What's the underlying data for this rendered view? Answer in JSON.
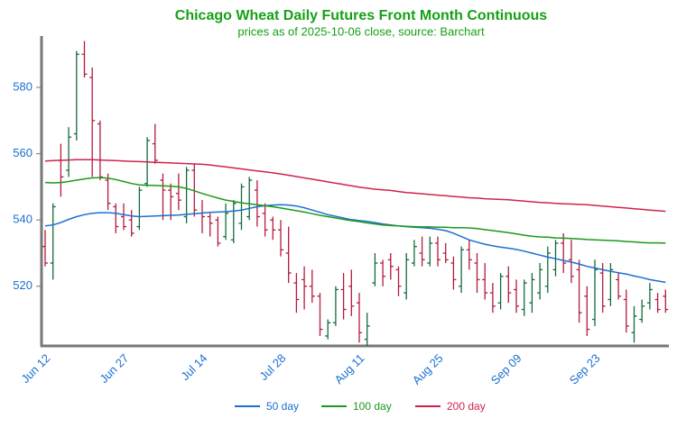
{
  "chart_data": {
    "type": "ohlc",
    "title": "Chicago Wheat Daily Futures Front Month Continuous",
    "subtitle": "prices as of 2025-10-06 close, source: Barchart",
    "categories": [
      "Jun 12",
      null,
      null,
      null,
      null,
      null,
      null,
      null,
      null,
      null,
      "Jun 27",
      null,
      null,
      null,
      null,
      null,
      null,
      null,
      null,
      null,
      "Jul 14",
      null,
      null,
      null,
      null,
      null,
      null,
      null,
      null,
      null,
      "Jul 28",
      null,
      null,
      null,
      null,
      null,
      null,
      null,
      null,
      null,
      "Aug 11",
      null,
      null,
      null,
      null,
      null,
      null,
      null,
      null,
      null,
      "Aug 25",
      null,
      null,
      null,
      null,
      null,
      null,
      null,
      null,
      null,
      "Sep 09",
      null,
      null,
      null,
      null,
      null,
      null,
      null,
      null,
      null,
      "Sep 23",
      null,
      null,
      null,
      null,
      null,
      null,
      null,
      null,
      null
    ],
    "open": [
      532,
      527,
      558,
      555,
      566,
      590,
      583,
      569,
      552,
      544,
      541,
      540,
      538,
      551,
      563,
      552,
      549,
      548,
      541,
      555,
      542,
      541,
      540,
      535,
      534,
      539,
      541,
      549,
      542,
      540,
      537,
      530,
      521,
      522,
      520,
      517,
      505,
      509,
      519,
      520,
      515,
      504,
      521,
      527,
      528,
      525,
      518,
      527,
      530,
      527,
      533,
      530,
      527,
      520,
      531,
      527,
      522,
      518,
      515,
      523,
      519,
      513,
      515,
      518,
      520,
      525,
      533,
      528,
      525,
      517,
      510,
      524,
      516,
      522,
      516,
      506,
      510,
      515,
      516,
      517
    ],
    "high": [
      537,
      545,
      563,
      568,
      591,
      594,
      586,
      570,
      554,
      545,
      545,
      543,
      550,
      565,
      569,
      554,
      551,
      554,
      556,
      557,
      546,
      542,
      541,
      545,
      546,
      551,
      553,
      552,
      545,
      541,
      540,
      538,
      524,
      526,
      525,
      518,
      510,
      520,
      524,
      525,
      518,
      512,
      530,
      528,
      530,
      526,
      530,
      534,
      535,
      535,
      535,
      533,
      529,
      532,
      534,
      530,
      527,
      521,
      524,
      526,
      522,
      522,
      524,
      527,
      532,
      534,
      536,
      534,
      528,
      520,
      528,
      527,
      527,
      524,
      519,
      514,
      516,
      521,
      518,
      519
    ],
    "low": [
      526,
      522,
      547,
      553,
      564,
      583,
      553,
      552,
      543,
      536,
      537,
      535,
      537,
      550,
      557,
      540,
      540,
      543,
      539,
      541,
      536,
      535,
      532,
      534,
      533,
      537,
      540,
      538,
      535,
      534,
      529,
      521,
      512,
      513,
      515,
      505,
      504,
      508,
      510,
      511,
      503,
      502,
      520,
      520,
      522,
      517,
      516,
      526,
      526,
      526,
      526,
      527,
      519,
      518,
      525,
      518,
      516,
      512,
      513,
      515,
      512,
      511,
      512,
      516,
      518,
      523,
      524,
      521,
      509,
      505,
      508,
      512,
      514,
      516,
      506,
      503,
      509,
      513,
      512,
      512
    ],
    "close": [
      527,
      544,
      553,
      565,
      590,
      584,
      570,
      553,
      545,
      538,
      538,
      536,
      549,
      564,
      558,
      549,
      547,
      546,
      555,
      543,
      541,
      539,
      533,
      542,
      545,
      550,
      552,
      541,
      537,
      537,
      531,
      524,
      516,
      520,
      517,
      507,
      509,
      519,
      513,
      514,
      506,
      508,
      527,
      523,
      526,
      520,
      528,
      532,
      528,
      533,
      528,
      528,
      522,
      531,
      528,
      522,
      518,
      514,
      523,
      518,
      514,
      521,
      522,
      525,
      530,
      533,
      527,
      523,
      512,
      507,
      525,
      514,
      525,
      517,
      508,
      511,
      514,
      519,
      513,
      513
    ],
    "up_color": "#146b3a",
    "down_color": "#b31b3c",
    "series": [
      {
        "name": "50 day",
        "color": "#1a6fd1",
        "values": [
          538.2,
          538.5,
          539.2,
          540.2,
          541.0,
          541.6,
          542.0,
          542.2,
          542.2,
          542.0,
          541.6,
          541.2,
          541.0,
          541.1,
          541.2,
          541.3,
          541.4,
          541.5,
          541.7,
          541.9,
          542.1,
          542.3,
          542.4,
          542.5,
          542.7,
          543.0,
          543.5,
          544.0,
          544.3,
          544.5,
          544.6,
          544.5,
          544.2,
          543.7,
          543.0,
          542.3,
          541.6,
          541.1,
          540.6,
          540.1,
          539.8,
          539.6,
          539.2,
          538.8,
          538.5,
          538.2,
          538.0,
          537.8,
          537.7,
          537.5,
          537.2,
          536.8,
          536.0,
          535.0,
          534.0,
          533.3,
          532.7,
          532.2,
          531.8,
          531.5,
          531.1,
          530.6,
          530.0,
          529.4,
          528.8,
          528.3,
          527.8,
          527.3,
          526.7,
          526.0,
          525.5,
          525.0,
          524.5,
          524.1,
          523.7,
          523.1,
          522.6,
          522.0,
          521.6,
          521.2
        ]
      },
      {
        "name": "100 day",
        "color": "#1a9a1a",
        "values": [
          551.3,
          551.2,
          551.3,
          551.6,
          552.0,
          552.4,
          552.7,
          552.8,
          552.6,
          552.2,
          551.6,
          551.0,
          550.6,
          550.5,
          550.4,
          550.3,
          550.2,
          550.0,
          549.5,
          548.8,
          548.0,
          547.3,
          546.6,
          546.0,
          545.6,
          545.2,
          544.9,
          544.6,
          544.3,
          544.0,
          543.6,
          543.2,
          542.8,
          542.4,
          541.9,
          541.4,
          541.0,
          540.6,
          540.2,
          539.8,
          539.5,
          539.1,
          538.8,
          538.5,
          538.3,
          538.2,
          538.1,
          538.0,
          537.9,
          537.9,
          537.8,
          537.8,
          537.7,
          537.7,
          537.6,
          537.4,
          537.1,
          536.8,
          536.5,
          536.2,
          535.8,
          535.4,
          535.1,
          534.9,
          534.8,
          534.6,
          534.5,
          534.4,
          534.3,
          534.1,
          534.0,
          533.9,
          533.8,
          533.7,
          533.5,
          533.4,
          533.2,
          533.1,
          533.1,
          533.0
        ]
      },
      {
        "name": "200 day",
        "color": "#d0234b",
        "values": [
          557.8,
          557.9,
          558.0,
          558.1,
          558.2,
          558.2,
          558.2,
          558.1,
          558.0,
          557.9,
          557.8,
          557.7,
          557.6,
          557.5,
          557.4,
          557.3,
          557.2,
          557.1,
          557.0,
          556.9,
          556.8,
          556.6,
          556.3,
          556.0,
          555.7,
          555.4,
          555.1,
          554.8,
          554.5,
          554.2,
          553.9,
          553.5,
          553.1,
          552.7,
          552.3,
          551.9,
          551.5,
          551.1,
          550.7,
          550.3,
          549.9,
          549.6,
          549.3,
          549.1,
          548.9,
          548.6,
          548.3,
          548.1,
          547.9,
          547.7,
          547.5,
          547.3,
          547.1,
          546.9,
          546.7,
          546.6,
          546.4,
          546.3,
          546.2,
          546.1,
          545.9,
          545.7,
          545.5,
          545.3,
          545.2,
          545.0,
          544.9,
          544.8,
          544.7,
          544.6,
          544.4,
          544.2,
          544.0,
          543.8,
          543.6,
          543.4,
          543.2,
          543.0,
          542.8,
          542.6
        ]
      }
    ],
    "ylim": [
      502,
      595.5
    ],
    "yticks": [
      520,
      540,
      560,
      580
    ],
    "grid": false,
    "legend": "bottom"
  }
}
